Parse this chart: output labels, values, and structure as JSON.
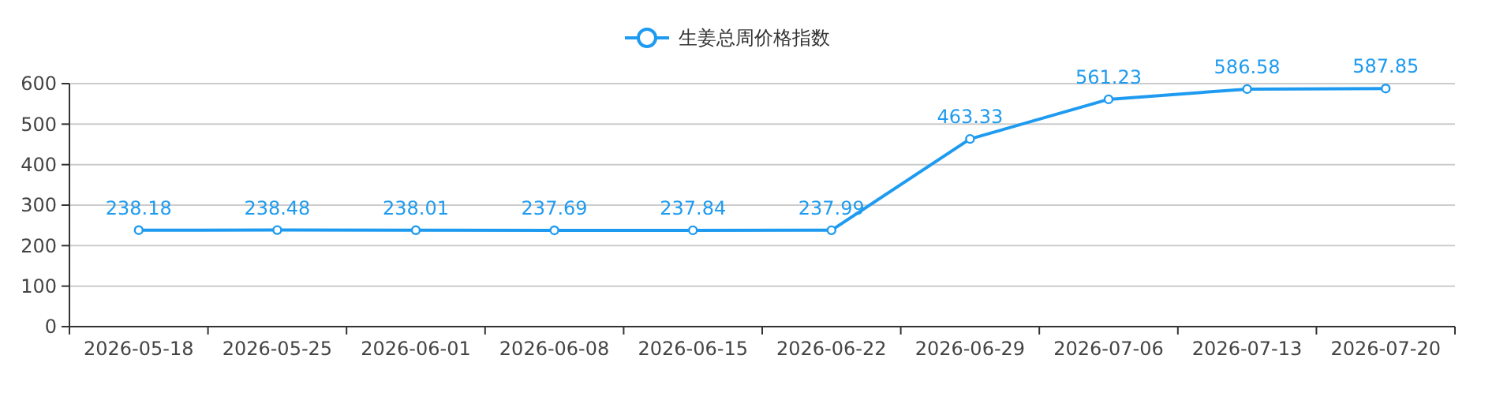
{
  "chart_data": {
    "type": "line",
    "categories": [
      "2026-05-18",
      "2026-05-25",
      "2026-06-01",
      "2026-06-08",
      "2026-06-15",
      "2026-06-22",
      "2026-06-29",
      "2026-07-06",
      "2026-07-13",
      "2026-07-20"
    ],
    "series": [
      {
        "name": "生姜总周价格指数",
        "color": "#1e9bf0",
        "values": [
          238.18,
          238.48,
          238.01,
          237.69,
          237.84,
          237.99,
          463.33,
          561.23,
          586.58,
          587.85
        ]
      }
    ],
    "ylim": [
      0,
      600
    ],
    "yticks": [
      0,
      100,
      200,
      300,
      400,
      500,
      600
    ],
    "grid": "y",
    "legend": "top",
    "marker": "circle",
    "line_style": "solid",
    "data_labels": true
  }
}
